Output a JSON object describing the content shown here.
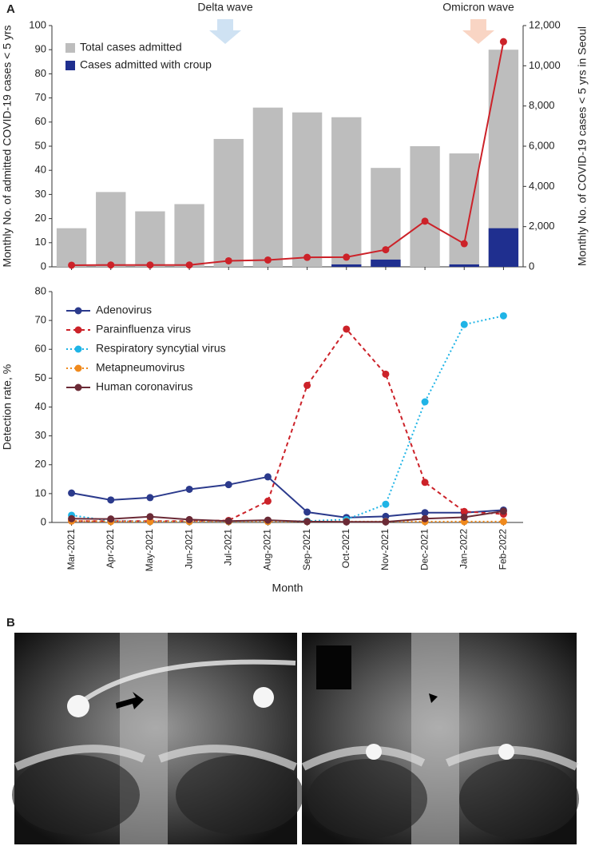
{
  "panel_b": {
    "label": "B"
  },
  "chart_data": [
    {
      "type": "combo",
      "panel_label": "A",
      "annotations": [
        "Delta wave",
        "Omicron wave"
      ],
      "ylabel": "Monthly No. of admitted COVID-19 cases < 5 yrs",
      "y2label": "Monthly No. of COVID-19 cases < 5 yrs in Seoul",
      "categories": [
        null,
        null,
        null,
        null,
        null,
        null,
        null,
        null,
        null,
        null,
        null,
        null
      ],
      "ylim": [
        0,
        100
      ],
      "yticks": [
        0,
        10,
        20,
        30,
        40,
        50,
        60,
        70,
        80,
        90,
        100
      ],
      "y2lim": [
        0,
        12000
      ],
      "y2ticks": [
        0,
        {
          "value": 2000,
          "label": "2,000"
        },
        {
          "value": 4000,
          "label": "4,000"
        },
        {
          "value": 6000,
          "label": "6,000"
        },
        {
          "value": 8000,
          "label": "8,000"
        },
        {
          "value": 10000,
          "label": "10,000"
        },
        {
          "value": 12000,
          "label": "12,000"
        }
      ],
      "series": [
        {
          "name": "Total cases admitted",
          "kind": "bar",
          "color": "#bdbdbd",
          "values": [
            16,
            31,
            23,
            26,
            53,
            66,
            64,
            62,
            41,
            50,
            47,
            90
          ]
        },
        {
          "name": "Cases admitted with croup",
          "kind": "bar",
          "color": "#1f2f8f",
          "values": [
            0,
            0,
            0,
            0,
            0,
            0,
            0,
            1,
            3,
            0,
            1,
            16
          ]
        },
        {
          "kind": "line",
          "axis": "y2",
          "color": "#cc2229",
          "values": [
            80,
            90,
            90,
            90,
            300,
            340,
            470,
            480,
            850,
            2270,
            1150,
            11200
          ]
        }
      ]
    },
    {
      "type": "line",
      "xlabel": "Month",
      "ylabel": "Detection rate, %",
      "categories": [
        "Mar-2021",
        "Apr-2021",
        "May-2021",
        "Jun-2021",
        "Jul-2021",
        "Aug-2021",
        "Sep-2021",
        "Oct-2021",
        "Nov-2021",
        "Dec-2021",
        "Jan-2022",
        "Feb-2022"
      ],
      "ylim": [
        0,
        80
      ],
      "yticks": [
        0,
        10,
        20,
        30,
        40,
        50,
        60,
        70,
        80
      ],
      "series": [
        {
          "name": "Adenovirus",
          "color": "#2b3a8c",
          "dash": "solid",
          "values": [
            10.2,
            7.8,
            8.6,
            11.5,
            13.1,
            15.8,
            3.6,
            1.7,
            2.1,
            3.4,
            3.4,
            4.3
          ]
        },
        {
          "name": "Parainfluenza virus",
          "color": "#cc2229",
          "dash": "dashed",
          "values": [
            0.5,
            0.5,
            0.5,
            0.5,
            0.7,
            7.4,
            47.5,
            67,
            51.4,
            13.9,
            3.8,
            2.9
          ]
        },
        {
          "name": "Respiratory syncytial virus",
          "color": "#1fb4e6",
          "dash": "dotted",
          "values": [
            2.5,
            0.5,
            0.3,
            0.3,
            0.3,
            0.3,
            0.5,
            1.0,
            6.3,
            41.8,
            68.6,
            71.6
          ]
        },
        {
          "name": "Metapneumovirus",
          "color": "#f08a1d",
          "dash": "dotted",
          "values": [
            0.5,
            0.3,
            0.3,
            0.3,
            0.3,
            0.3,
            0.3,
            0.3,
            0.3,
            0.3,
            0.3,
            0.3
          ]
        },
        {
          "name": "Human coronavirus",
          "color": "#6b2a36",
          "dash": "solid",
          "values": [
            1.3,
            1.2,
            2,
            1,
            0.5,
            0.8,
            0.3,
            0.2,
            0.2,
            1.3,
            1.8,
            3.9
          ]
        }
      ]
    }
  ]
}
